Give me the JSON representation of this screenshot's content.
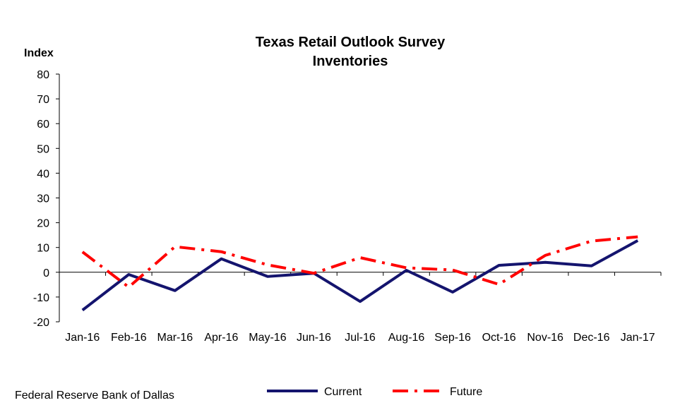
{
  "chart_data": {
    "type": "line",
    "title": [
      "Texas Retail Outlook Survey",
      "Inventories"
    ],
    "ylabel": "Index",
    "xlabel": "",
    "ylim": [
      -20,
      80
    ],
    "yticks": [
      80,
      70,
      60,
      50,
      40,
      30,
      20,
      10,
      0,
      -10,
      -20
    ],
    "categories": [
      "Jan-16",
      "Feb-16",
      "Mar-16",
      "Apr-16",
      "May-16",
      "Jun-16",
      "Jul-16",
      "Aug-16",
      "Sep-16",
      "Oct-16",
      "Nov-16",
      "Dec-16",
      "Jan-17"
    ],
    "series": [
      {
        "name": "Current",
        "color": "#14146e",
        "style": "solid",
        "values": [
          -15.3,
          -0.9,
          -7.4,
          5.4,
          -1.7,
          -0.4,
          -11.8,
          0.8,
          -8.0,
          2.8,
          4.0,
          2.6,
          12.8
        ]
      },
      {
        "name": "Future",
        "color": "#ff0000",
        "style": "dash-dot",
        "values": [
          8.2,
          -6.0,
          10.3,
          8.3,
          3.0,
          -0.4,
          5.9,
          1.8,
          0.9,
          -4.9,
          6.8,
          12.6,
          14.3
        ]
      }
    ],
    "grid": false,
    "legend": "bottom-center"
  },
  "source": "Federal Reserve Bank of Dallas"
}
